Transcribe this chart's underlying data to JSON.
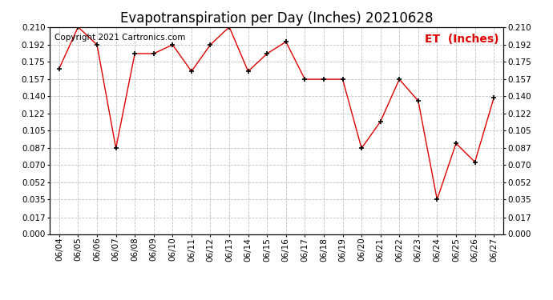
{
  "title": "Evapotranspiration per Day (Inches) 20210628",
  "copyright_text": "Copyright 2021 Cartronics.com",
  "legend_label": "ET  (Inches)",
  "dates": [
    "06/04",
    "06/05",
    "06/06",
    "06/07",
    "06/08",
    "06/09",
    "06/10",
    "06/11",
    "06/12",
    "06/13",
    "06/14",
    "06/15",
    "06/16",
    "06/17",
    "06/18",
    "06/19",
    "06/20",
    "06/21",
    "06/22",
    "06/23",
    "06/24",
    "06/25",
    "06/26",
    "06/27"
  ],
  "values": [
    0.168,
    0.21,
    0.192,
    0.087,
    0.183,
    0.183,
    0.192,
    0.165,
    0.192,
    0.21,
    0.165,
    0.183,
    0.195,
    0.157,
    0.157,
    0.157,
    0.087,
    0.114,
    0.157,
    0.135,
    0.035,
    0.092,
    0.073,
    0.138
  ],
  "line_color": "#dd0000",
  "marker_color": "#000000",
  "marker": "+",
  "ylim": [
    0.0,
    0.21
  ],
  "yticks": [
    0.0,
    0.017,
    0.035,
    0.052,
    0.07,
    0.087,
    0.105,
    0.122,
    0.14,
    0.157,
    0.175,
    0.192,
    0.21
  ],
  "background_color": "#ffffff",
  "grid_color": "#c0c0c0",
  "title_fontsize": 12,
  "legend_fontsize": 10,
  "copyright_fontsize": 7.5,
  "tick_fontsize": 7.5
}
